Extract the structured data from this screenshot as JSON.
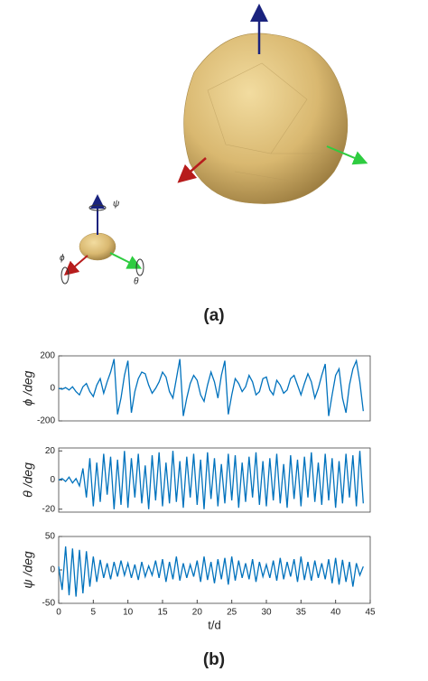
{
  "figure": {
    "labels": [
      "(a)",
      "(b)"
    ]
  },
  "illustration": {
    "axis_labels": [
      "ψ",
      "ϕ",
      "θ"
    ]
  },
  "chart_data": [
    {
      "type": "line",
      "ylabel": "ϕ /deg",
      "color": "#0072bd",
      "xlim": [
        0,
        45
      ],
      "ylim": [
        -200,
        200
      ],
      "yticks": [
        -200,
        0,
        200
      ],
      "x": [
        0,
        0.5,
        1,
        1.5,
        2,
        2.5,
        3,
        3.5,
        4,
        4.5,
        5,
        5.5,
        6,
        6.5,
        7,
        7.5,
        8,
        8.5,
        9,
        9.5,
        10,
        10.5,
        11,
        11.5,
        12,
        12.5,
        13,
        13.5,
        14,
        14.5,
        15,
        15.5,
        16,
        16.5,
        17,
        17.5,
        18,
        18.5,
        19,
        19.5,
        20,
        20.5,
        21,
        21.5,
        22,
        22.5,
        23,
        23.5,
        24,
        24.5,
        25,
        25.5,
        26,
        26.5,
        27,
        27.5,
        28,
        28.5,
        29,
        29.5,
        30,
        30.5,
        31,
        31.5,
        32,
        32.5,
        33,
        33.5,
        34,
        34.5,
        35,
        35.5,
        36,
        36.5,
        37,
        37.5,
        38,
        38.5,
        39,
        39.5,
        40,
        40.5,
        41,
        41.5,
        42,
        42.5,
        43,
        43.5,
        44
      ],
      "values": [
        0,
        -5,
        5,
        -10,
        10,
        -20,
        -40,
        10,
        30,
        -20,
        -50,
        20,
        60,
        -30,
        40,
        100,
        180,
        -160,
        -60,
        80,
        170,
        -150,
        -20,
        60,
        100,
        90,
        20,
        -30,
        0,
        40,
        100,
        70,
        -20,
        -60,
        60,
        180,
        -170,
        -60,
        30,
        80,
        50,
        -40,
        -80,
        20,
        100,
        40,
        -60,
        80,
        170,
        -160,
        -40,
        60,
        30,
        -20,
        10,
        80,
        40,
        -40,
        -20,
        60,
        70,
        -10,
        -40,
        50,
        20,
        -30,
        -10,
        60,
        80,
        20,
        -40,
        30,
        90,
        40,
        -60,
        0,
        80,
        150,
        -170,
        -40,
        80,
        120,
        -60,
        -150,
        20,
        120,
        170,
        40,
        -140
      ]
    },
    {
      "type": "line",
      "ylabel": "θ /deg",
      "color": "#0072bd",
      "xlim": [
        0,
        45
      ],
      "ylim": [
        -22,
        22
      ],
      "yticks": [
        -20,
        0,
        20
      ],
      "x": [
        0,
        0.5,
        1,
        1.5,
        2,
        2.5,
        3,
        3.5,
        4,
        4.5,
        5,
        5.5,
        6,
        6.5,
        7,
        7.5,
        8,
        8.5,
        9,
        9.5,
        10,
        10.5,
        11,
        11.5,
        12,
        12.5,
        13,
        13.5,
        14,
        14.5,
        15,
        15.5,
        16,
        16.5,
        17,
        17.5,
        18,
        18.5,
        19,
        19.5,
        20,
        20.5,
        21,
        21.5,
        22,
        22.5,
        23,
        23.5,
        24,
        24.5,
        25,
        25.5,
        26,
        26.5,
        27,
        27.5,
        28,
        28.5,
        29,
        29.5,
        30,
        30.5,
        31,
        31.5,
        32,
        32.5,
        33,
        33.5,
        34,
        34.5,
        35,
        35.5,
        36,
        36.5,
        37,
        37.5,
        38,
        38.5,
        39,
        39.5,
        40,
        40.5,
        41,
        41.5,
        42,
        42.5,
        43,
        43.5,
        44
      ],
      "values": [
        0,
        1,
        -1,
        2,
        -2,
        1,
        -4,
        8,
        -12,
        15,
        -18,
        12,
        -15,
        18,
        -10,
        16,
        -20,
        14,
        -17,
        20,
        -19,
        15,
        -12,
        18,
        -16,
        10,
        -20,
        17,
        -14,
        19,
        -18,
        12,
        -16,
        20,
        -15,
        13,
        -19,
        16,
        -12,
        18,
        -17,
        14,
        -20,
        19,
        -13,
        15,
        -18,
        11,
        -16,
        18,
        -14,
        17,
        -19,
        12,
        -15,
        16,
        -12,
        19,
        -17,
        13,
        -18,
        15,
        -14,
        18,
        -16,
        11,
        -19,
        17,
        -13,
        14,
        -18,
        16,
        -12,
        19,
        -15,
        12,
        -17,
        18,
        -14,
        15,
        -19,
        13,
        -16,
        18,
        -12,
        17,
        -18,
        20,
        -16
      ]
    },
    {
      "type": "line",
      "ylabel": "ψ /deg",
      "xlabel": "t/d",
      "color": "#0072bd",
      "xlim": [
        0,
        45
      ],
      "xticks": [
        0,
        5,
        10,
        15,
        20,
        25,
        30,
        35,
        40,
        45
      ],
      "ylim": [
        -50,
        50
      ],
      "yticks": [
        -50,
        0,
        50
      ],
      "x": [
        0,
        0.5,
        1,
        1.5,
        2,
        2.5,
        3,
        3.5,
        4,
        4.5,
        5,
        5.5,
        6,
        6.5,
        7,
        7.5,
        8,
        8.5,
        9,
        9.5,
        10,
        10.5,
        11,
        11.5,
        12,
        12.5,
        13,
        13.5,
        14,
        14.5,
        15,
        15.5,
        16,
        16.5,
        17,
        17.5,
        18,
        18.5,
        19,
        19.5,
        20,
        20.5,
        21,
        21.5,
        22,
        22.5,
        23,
        23.5,
        24,
        24.5,
        25,
        25.5,
        26,
        26.5,
        27,
        27.5,
        28,
        28.5,
        29,
        29.5,
        30,
        30.5,
        31,
        31.5,
        32,
        32.5,
        33,
        33.5,
        34,
        34.5,
        35,
        35.5,
        36,
        36.5,
        37,
        37.5,
        38,
        38.5,
        39,
        39.5,
        40,
        40.5,
        41,
        41.5,
        42,
        42.5,
        43,
        43.5,
        44
      ],
      "values": [
        5,
        -30,
        35,
        -38,
        32,
        -40,
        30,
        -35,
        28,
        -25,
        20,
        -18,
        15,
        -12,
        10,
        -14,
        12,
        -10,
        14,
        -8,
        10,
        -12,
        8,
        -15,
        12,
        -10,
        6,
        -8,
        14,
        -12,
        16,
        -18,
        12,
        -14,
        20,
        -16,
        10,
        -12,
        8,
        -10,
        14,
        -18,
        20,
        -15,
        12,
        -20,
        16,
        -14,
        18,
        -22,
        20,
        -16,
        14,
        -12,
        10,
        -14,
        16,
        -18,
        12,
        -10,
        8,
        -12,
        14,
        -16,
        18,
        -14,
        12,
        -10,
        16,
        -18,
        20,
        -15,
        12,
        -16,
        14,
        -12,
        10,
        -14,
        16,
        -20,
        18,
        -22,
        15,
        -18,
        12,
        -25,
        10,
        -8,
        5
      ]
    }
  ]
}
